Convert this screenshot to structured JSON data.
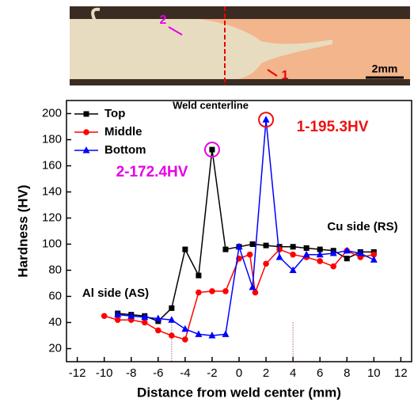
{
  "micrograph": {
    "marker_labels": [
      "2",
      "1"
    ],
    "scale_bar": "2mm"
  },
  "chart_data": {
    "type": "line",
    "xlabel": "Distance from weld center (mm)",
    "ylabel": "Hardness (HV)",
    "xlim": [
      -12.8,
      12.8
    ],
    "xticks": [
      -12,
      -10,
      -8,
      -6,
      -4,
      -2,
      0,
      2,
      4,
      6,
      8,
      10,
      12
    ],
    "ylim": [
      10,
      210
    ],
    "yticks": [
      20,
      40,
      60,
      80,
      100,
      120,
      140,
      160,
      180,
      200
    ],
    "legend": "upper left",
    "vlines": [
      -5,
      4
    ],
    "annotations": [
      {
        "text": "Weld centerline",
        "color": "#000000"
      },
      {
        "text": "2-172.4HV",
        "color": "#e600e6"
      },
      {
        "text": "1-195.3HV",
        "color": "#ee1111"
      },
      {
        "text": "Cu side (RS)",
        "color": "#000000"
      },
      {
        "text": "Al side (AS)",
        "color": "#000000"
      }
    ],
    "series": [
      {
        "name": "Top",
        "color": "#000000",
        "marker": "square",
        "x": [
          -9,
          -8,
          -7,
          -6,
          -5,
          -4,
          -3,
          -2,
          -1,
          0,
          1,
          2,
          3,
          4,
          5,
          6,
          7,
          8,
          9,
          10
        ],
        "values": [
          47,
          46,
          45,
          41,
          51,
          96,
          76,
          172.4,
          96,
          98,
          100,
          99,
          98,
          98,
          97,
          96,
          95,
          89,
          94,
          94
        ]
      },
      {
        "name": "Middle",
        "color": "#ff0000",
        "marker": "circle",
        "x": [
          -10,
          -9,
          -8,
          -7,
          -6,
          -5,
          -4,
          -3,
          -2,
          -1,
          0,
          0.8,
          1.2,
          2,
          3,
          4,
          5,
          6,
          7,
          8,
          9,
          10
        ],
        "values": [
          45,
          42,
          42,
          40,
          34,
          30,
          27,
          63,
          64,
          64,
          89,
          92,
          63,
          85,
          96,
          92,
          90,
          87,
          83,
          95,
          90,
          92
        ]
      },
      {
        "name": "Bottom",
        "color": "#0000ff",
        "marker": "triangle",
        "x": [
          -9,
          -8,
          -7,
          -6,
          -5,
          -4,
          -3,
          -2,
          -1,
          0,
          1,
          2,
          3,
          4,
          5,
          6,
          7,
          8,
          9,
          10
        ],
        "values": [
          46,
          45,
          44,
          43,
          42,
          35,
          31,
          30,
          31,
          98,
          67,
          195.3,
          90,
          80,
          92,
          92,
          93,
          95,
          93,
          88
        ]
      }
    ]
  }
}
